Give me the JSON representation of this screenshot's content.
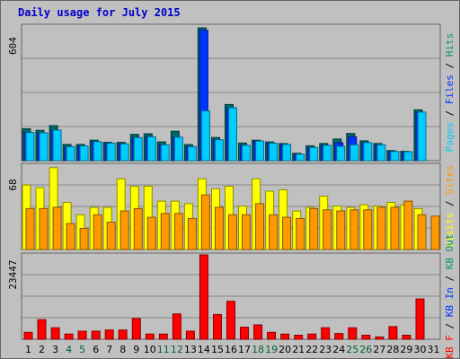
{
  "chart_data": {
    "type": "bar",
    "title": "Daily usage for July 2015",
    "categories": [
      "1",
      "2",
      "3",
      "4",
      "5",
      "6",
      "7",
      "8",
      "9",
      "10",
      "11",
      "12",
      "13",
      "14",
      "15",
      "16",
      "17",
      "18",
      "19",
      "20",
      "21",
      "22",
      "23",
      "24",
      "25",
      "26",
      "27",
      "28",
      "29",
      "30",
      "31"
    ],
    "weekend_days": [
      "4",
      "5",
      "11",
      "12",
      "18",
      "19",
      "25",
      "26"
    ],
    "panels": [
      {
        "max_label": "604",
        "ylim": [
          0,
          604
        ],
        "legend": [
          {
            "text": "Pages",
            "color": "#00ccff"
          },
          {
            "text": " / ",
            "color": "#000000"
          },
          {
            "text": "Files",
            "color": "#0033ff"
          },
          {
            "text": " / ",
            "color": "#000000"
          },
          {
            "text": "Hits",
            "color": "#009966"
          }
        ],
        "series": [
          {
            "name": "Hits",
            "color": "#006666",
            "values": [
              143,
              136,
              157,
              73,
              73,
              92,
              82,
              82,
              118,
              121,
              84,
              132,
              72,
              596,
              104,
              252,
              79,
              92,
              84,
              77,
              33,
              67,
              77,
              97,
              122,
              89,
              77,
              45,
              42,
              228,
              0
            ]
          },
          {
            "name": "Files",
            "color": "#0033ff",
            "values": [
              126,
              125,
              137,
              63,
              66,
              85,
              78,
              75,
              103,
              107,
              71,
              105,
              63,
              585,
              94,
              237,
              69,
              88,
              78,
              73,
              29,
              59,
              69,
              80,
              107,
              81,
              71,
              41,
              40,
              218,
              0
            ]
          },
          {
            "name": "Pages",
            "color": "#00ccff",
            "values": [
              126,
              125,
              137,
              63,
              66,
              85,
              78,
              75,
              103,
              107,
              71,
              105,
              63,
              223,
              94,
              237,
              69,
              88,
              78,
              73,
              29,
              59,
              69,
              64,
              71,
              81,
              71,
              41,
              40,
              218,
              0
            ]
          }
        ]
      },
      {
        "max_label": "68",
        "ylim": [
          0,
          68
        ],
        "legend": [
          {
            "text": "Visits",
            "color": "#ffff00"
          },
          {
            "text": " / ",
            "color": "#000000"
          },
          {
            "text": "Sites",
            "color": "#ff9900"
          }
        ],
        "series": [
          {
            "name": "Visits",
            "color": "#ffff00",
            "values": [
              52,
              50,
              66,
              38,
              28,
              34,
              34,
              57,
              51,
              51,
              39,
              39,
              37,
              57,
              49,
              51,
              35,
              57,
              47,
              48,
              31,
              34,
              43,
              35,
              34,
              36,
              35,
              38,
              36,
              33,
              0
            ]
          },
          {
            "name": "Sites",
            "color": "#ff9900",
            "values": [
              33,
              33,
              34,
              21,
              17,
              28,
              22,
              31,
              33,
              26,
              29,
              29,
              25,
              44,
              34,
              28,
              28,
              37,
              28,
              26,
              25,
              33,
              32,
              31,
              32,
              32,
              34,
              34,
              39,
              28,
              27
            ]
          }
        ]
      },
      {
        "max_label": "23447",
        "ylim": [
          0,
          23447
        ],
        "legend": [
          {
            "text": "KB F",
            "color": "#ff0000"
          },
          {
            "text": " / ",
            "color": "#000000"
          },
          {
            "text": "KB In",
            "color": "#0033ff"
          },
          {
            "text": " / ",
            "color": "#000000"
          },
          {
            "text": "KB Out",
            "color": "#009966"
          }
        ],
        "series": [
          {
            "name": "KB F",
            "color": "#ff0000",
            "values": [
              1920,
              5440,
              3200,
              1440,
              2240,
              2240,
              2560,
              2560,
              5760,
              1440,
              1440,
              7040,
              2240,
              23447,
              6880,
              10560,
              3360,
              4000,
              1920,
              1440,
              1120,
              1440,
              3200,
              1600,
              3200,
              1120,
              640,
              3520,
              1120,
              11200,
              0
            ]
          }
        ]
      }
    ]
  }
}
